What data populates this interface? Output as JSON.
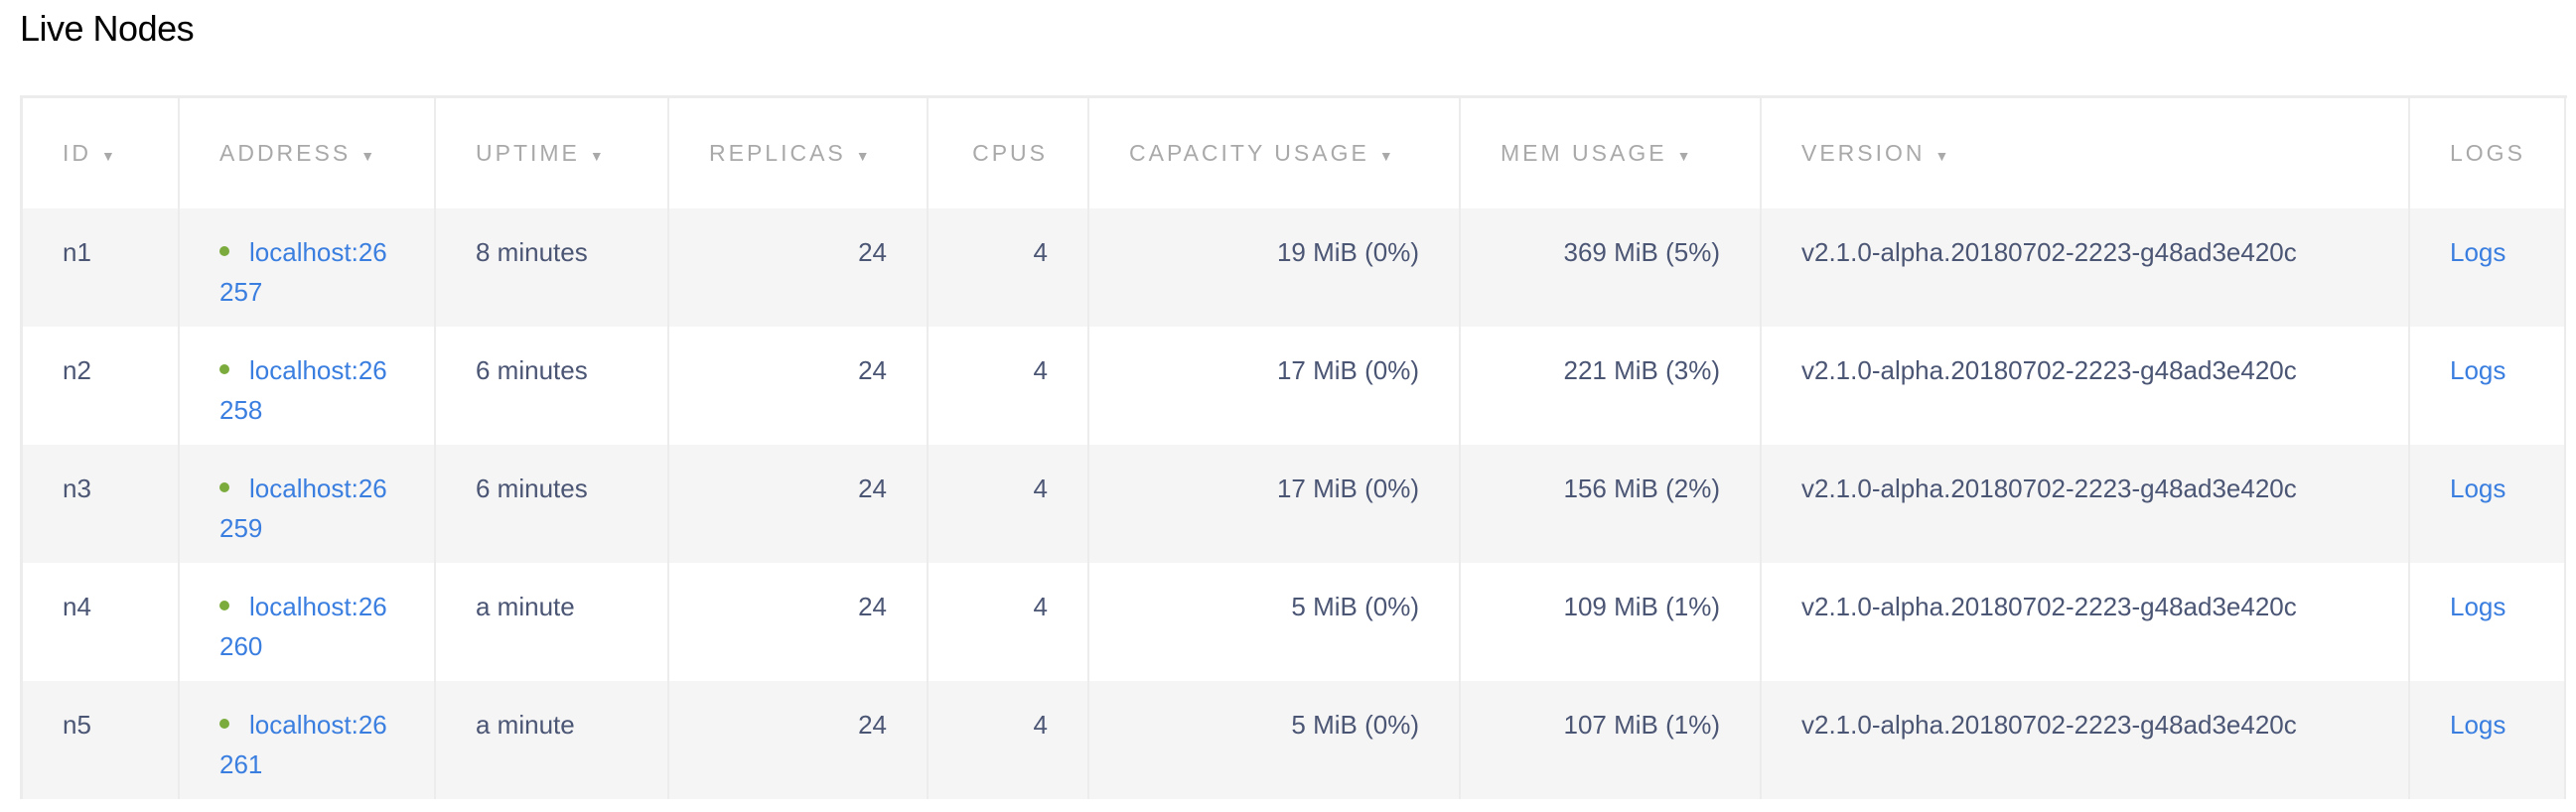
{
  "title": "Live Nodes",
  "colors": {
    "link": "#3a7ee0",
    "live_dot": "#7bab3c",
    "text": "#4b5574",
    "header": "#a9a9a9",
    "stripe": "#f5f5f5"
  },
  "columns": [
    {
      "label": "ID",
      "sortable": true
    },
    {
      "label": "ADDRESS",
      "sortable": true
    },
    {
      "label": "UPTIME",
      "sortable": true
    },
    {
      "label": "REPLICAS",
      "sortable": true
    },
    {
      "label": "CPUS",
      "sortable": false
    },
    {
      "label": "CAPACITY USAGE",
      "sortable": true
    },
    {
      "label": "MEM USAGE",
      "sortable": true
    },
    {
      "label": "VERSION",
      "sortable": true
    },
    {
      "label": "LOGS",
      "sortable": false
    }
  ],
  "sort_icon": "▼",
  "rows": [
    {
      "id": "n1",
      "address": "localhost:26257",
      "uptime": "8 minutes",
      "replicas": "24",
      "cpus": "4",
      "capacity": "19 MiB (0%)",
      "mem": "369 MiB (5%)",
      "version": "v2.1.0-alpha.20180702-2223-g48ad3e420c",
      "logs": "Logs"
    },
    {
      "id": "n2",
      "address": "localhost:26258",
      "uptime": "6 minutes",
      "replicas": "24",
      "cpus": "4",
      "capacity": "17 MiB (0%)",
      "mem": "221 MiB (3%)",
      "version": "v2.1.0-alpha.20180702-2223-g48ad3e420c",
      "logs": "Logs"
    },
    {
      "id": "n3",
      "address": "localhost:26259",
      "uptime": "6 minutes",
      "replicas": "24",
      "cpus": "4",
      "capacity": "17 MiB (0%)",
      "mem": "156 MiB (2%)",
      "version": "v2.1.0-alpha.20180702-2223-g48ad3e420c",
      "logs": "Logs"
    },
    {
      "id": "n4",
      "address": "localhost:26260",
      "uptime": "a minute",
      "replicas": "24",
      "cpus": "4",
      "capacity": "5 MiB (0%)",
      "mem": "109 MiB (1%)",
      "version": "v2.1.0-alpha.20180702-2223-g48ad3e420c",
      "logs": "Logs"
    },
    {
      "id": "n5",
      "address": "localhost:26261",
      "uptime": "a minute",
      "replicas": "24",
      "cpus": "4",
      "capacity": "5 MiB (0%)",
      "mem": "107 MiB (1%)",
      "version": "v2.1.0-alpha.20180702-2223-g48ad3e420c",
      "logs": "Logs"
    }
  ]
}
